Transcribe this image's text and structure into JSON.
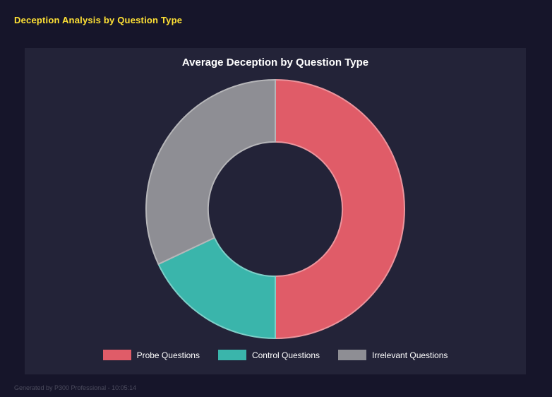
{
  "page": {
    "header": "Deception Analysis by Question Type",
    "footer": "Generated by P300 Professional - 10:05:14"
  },
  "colors": {
    "background": "#16152a",
    "panel": "#232338",
    "header_text": "#ffe135",
    "title_text": "#ffffff",
    "footer_text": "#4c4c5e"
  },
  "chart_data": {
    "type": "pie",
    "subtype": "donut",
    "title": "Average Deception by Question Type",
    "categories": [
      "Probe Questions",
      "Control Questions",
      "Irrelevant Questions"
    ],
    "values": [
      50,
      18,
      32
    ],
    "unit": "percent",
    "colors": [
      "#e05c68",
      "#3ab5ab",
      "#8e8e94"
    ],
    "start_angle_deg": 0,
    "direction": "clockwise",
    "inner_radius_ratio": 0.52,
    "legend_position": "bottom",
    "legend": [
      {
        "label": "Probe Questions",
        "color": "#e05c68"
      },
      {
        "label": "Control Questions",
        "color": "#3ab5ab"
      },
      {
        "label": "Irrelevant Questions",
        "color": "#8e8e94"
      }
    ]
  }
}
